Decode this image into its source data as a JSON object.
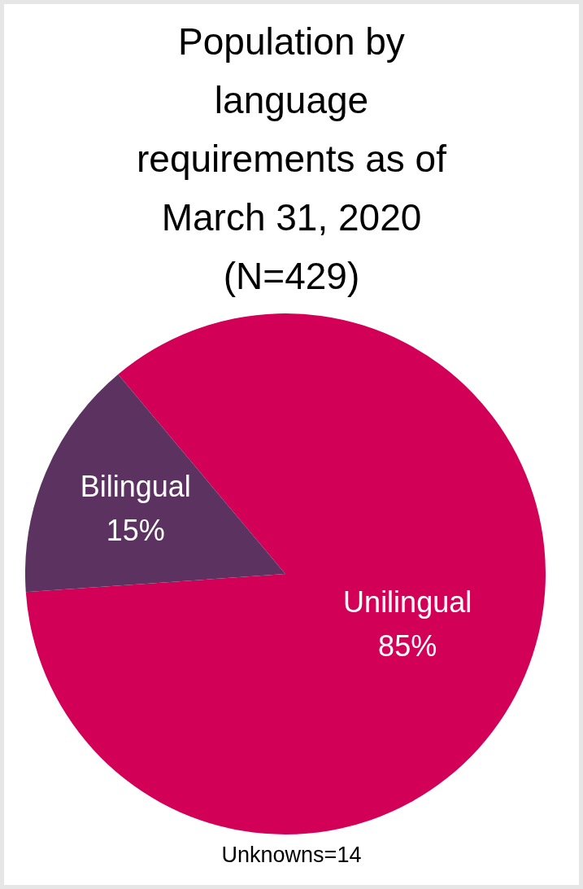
{
  "chart_data": {
    "type": "pie",
    "title": "Population by language requirements as of March 31, 2020 (N=429)",
    "categories": [
      "Unilingual",
      "Bilingual"
    ],
    "values": [
      85,
      15
    ],
    "colors": [
      "#d30057",
      "#5c3360"
    ],
    "value_labels": [
      "85%",
      "15%"
    ],
    "annotations": [
      "Unknowns=14"
    ]
  }
}
